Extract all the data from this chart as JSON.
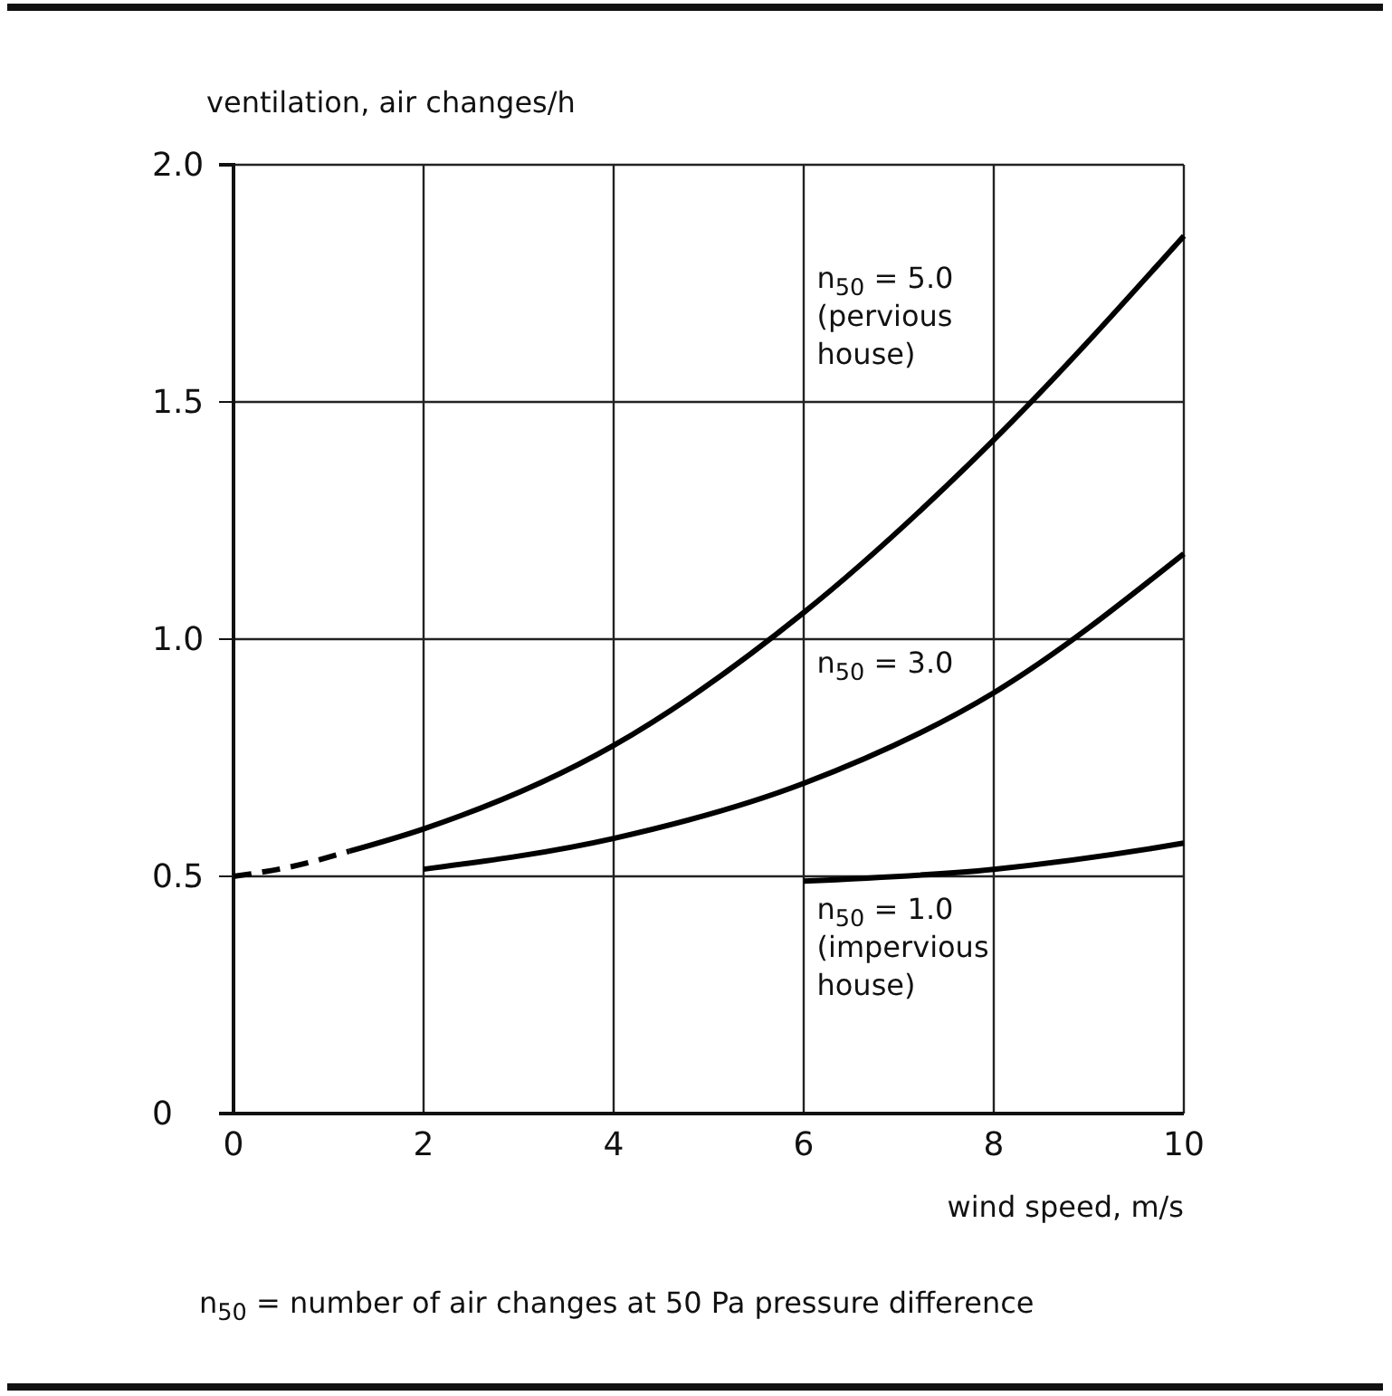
{
  "chart_data": {
    "type": "line",
    "xlabel": "wind speed, m/s",
    "ylabel": "ventilation, air changes/h",
    "xlim": [
      0,
      10
    ],
    "ylim": [
      0,
      2.0
    ],
    "xticks": [
      0,
      2,
      4,
      6,
      8,
      10
    ],
    "yticks": [
      0,
      {
        "value": 0.5,
        "label": "0.5"
      },
      {
        "value": 1,
        "label": "1.0"
      },
      {
        "value": 1.5,
        "label": "1.5"
      },
      {
        "value": 2,
        "label": "2.0"
      }
    ],
    "grid": true,
    "marker": "none",
    "series": [
      {
        "color": "#000000",
        "line_style": "dashed",
        "x": [
          0,
          0.6,
          1.22
        ],
        "values": [
          0.5,
          0.52,
          0.553
        ]
      },
      {
        "name": "n$_{50}$ = 5.0 (pervious house)",
        "color": "#000000",
        "line_style": "solid",
        "x": [
          1.22,
          2,
          4,
          6,
          8,
          10
        ],
        "values": [
          0.553,
          0.6,
          0.776,
          1.056,
          1.42,
          1.85
        ]
      },
      {
        "name": "n$_{50}$ = 3.0",
        "color": "#000000",
        "line_style": "solid",
        "x": [
          2,
          4,
          6,
          8,
          10
        ],
        "values": [
          0.515,
          0.58,
          0.696,
          0.887,
          1.18
        ]
      },
      {
        "name": "n$_{50}$ = 1.0 (impervious house)",
        "color": "#000000",
        "line_style": "solid",
        "x": [
          6,
          8,
          9.7,
          10
        ],
        "values": [
          0.49,
          0.515,
          0.56,
          0.57
        ]
      }
    ],
    "annotations": [
      "n$_{50}$ = number of air changes at 50 Pa pressure difference"
    ]
  }
}
